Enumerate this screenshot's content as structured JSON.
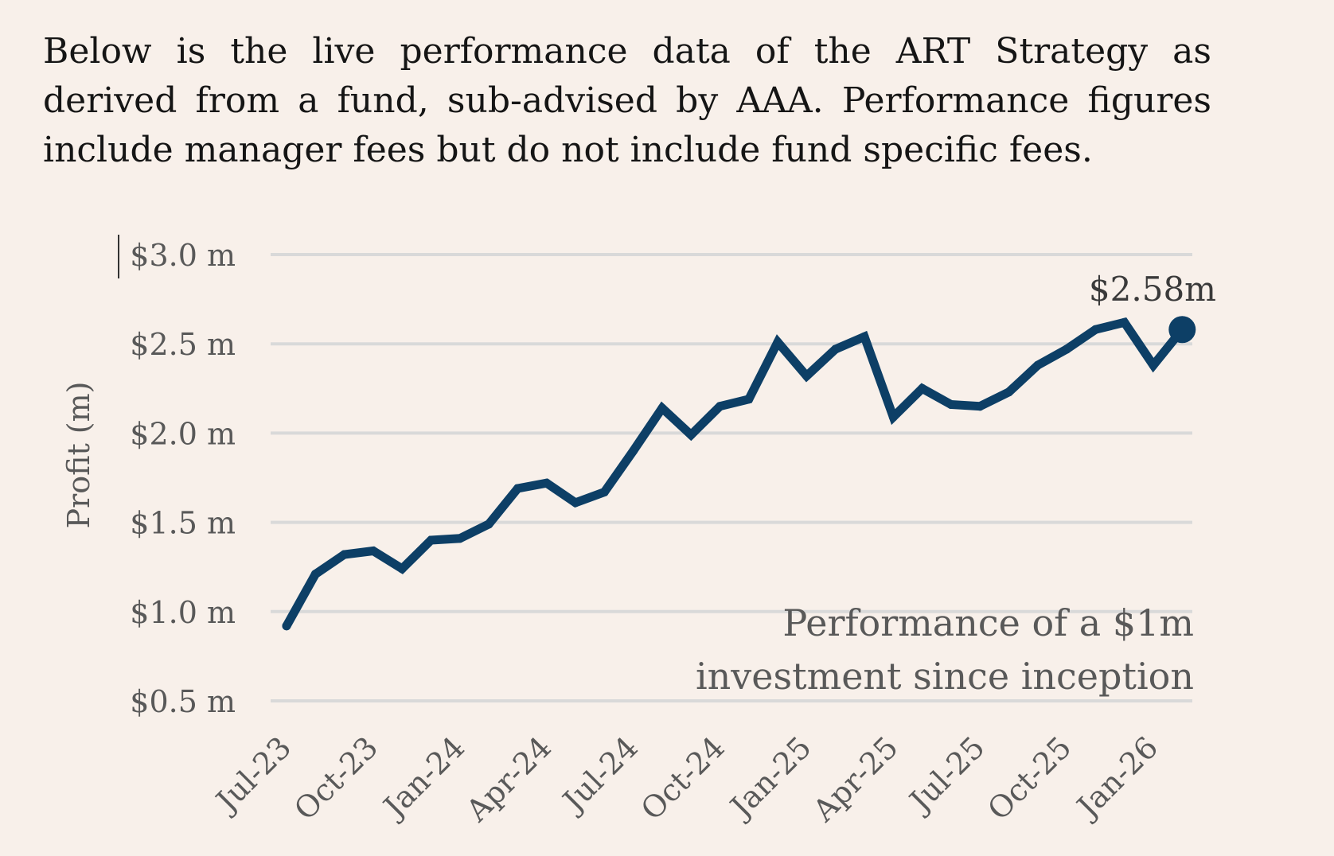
{
  "intro": {
    "lines": [
      "Below is the live performance data of the ART Strategy as",
      "derived from a fund, sub-advised by AAA. Performance figures",
      "include manager fees but do not include fund specific fees."
    ]
  },
  "chart_data": {
    "type": "line",
    "title": "",
    "ylabel": "Profit (m)",
    "xlabel": "",
    "ylim": [
      0.5,
      3.0
    ],
    "yticks": [
      0.5,
      1.0,
      1.5,
      2.0,
      2.5,
      3.0
    ],
    "ytick_labels": [
      "$0.5 m",
      "$1.0 m",
      "$1.5 m",
      "$2.0 m",
      "$2.5 m",
      "$3.0 m"
    ],
    "xtick_labels": [
      "Jul-23",
      "Oct-23",
      "Jan-24",
      "Apr-24",
      "Jul-24",
      "Oct-24",
      "Jan-25",
      "Apr-25",
      "Jul-25",
      "Oct-25",
      "Jan-26"
    ],
    "xtick_index": [
      0,
      3,
      6,
      9,
      12,
      15,
      18,
      21,
      24,
      27,
      30
    ],
    "x": [
      "Jul-23",
      "Aug-23",
      "Sep-23",
      "Oct-23",
      "Nov-23",
      "Dec-23",
      "Jan-24",
      "Feb-24",
      "Mar-24",
      "Apr-24",
      "May-24",
      "Jun-24",
      "Jul-24",
      "Aug-24",
      "Sep-24",
      "Oct-24",
      "Nov-24",
      "Dec-24",
      "Jan-25",
      "Feb-25",
      "Mar-25",
      "Apr-25",
      "May-25",
      "Jun-25",
      "Jul-25",
      "Aug-25",
      "Sep-25",
      "Oct-25",
      "Nov-25",
      "Dec-25",
      "Jan-26",
      "Feb-26"
    ],
    "series": [
      {
        "name": "Performance of a $1m investment since inception",
        "color": "#0d3f66",
        "values": [
          0.92,
          1.21,
          1.32,
          1.34,
          1.24,
          1.4,
          1.41,
          1.49,
          1.69,
          1.72,
          1.61,
          1.67,
          1.9,
          2.14,
          1.99,
          2.15,
          2.19,
          2.51,
          2.32,
          2.47,
          2.54,
          2.09,
          2.25,
          2.16,
          2.15,
          2.23,
          2.38,
          2.47,
          2.58,
          2.62,
          2.38,
          2.58
        ]
      }
    ],
    "end_label": "$2.58m",
    "annotation": [
      "Performance of a $1m",
      "investment since inception"
    ],
    "grid": true,
    "gridline_color": "#d9d9d9"
  }
}
